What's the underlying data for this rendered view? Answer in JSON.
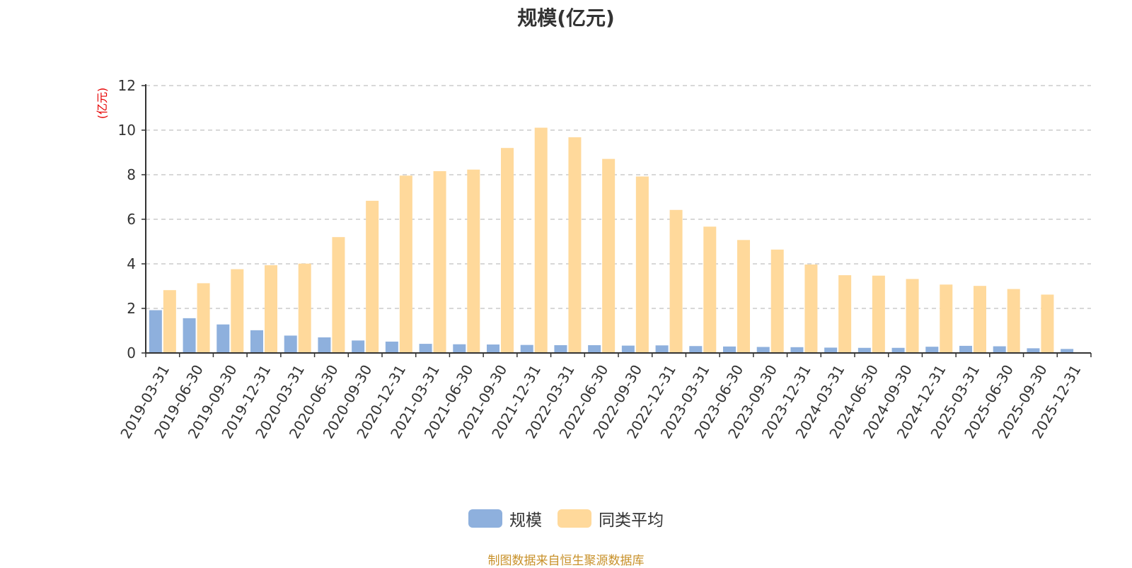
{
  "chart_data": {
    "type": "bar",
    "title": "规模(亿元)",
    "ylabel": "(亿元)",
    "xlabel": "",
    "ylim": [
      0,
      12
    ],
    "yticks": [
      0,
      2,
      4,
      6,
      8,
      10,
      12
    ],
    "grid": true,
    "legend_position": "bottom-center",
    "categories": [
      "2019-03-31",
      "2019-06-30",
      "2019-09-30",
      "2019-12-31",
      "2020-03-31",
      "2020-06-30",
      "2020-09-30",
      "2020-12-31",
      "2021-03-31",
      "2021-06-30",
      "2021-09-30",
      "2021-12-31",
      "2022-03-31",
      "2022-06-30",
      "2022-09-30",
      "2022-12-31",
      "2023-03-31",
      "2023-06-30",
      "2023-09-30",
      "2023-12-31",
      "2024-03-31",
      "2024-06-30",
      "2024-09-30",
      "2024-12-31",
      "2025-03-31",
      "2025-06-30",
      "2025-09-30",
      "2025-12-31"
    ],
    "series": [
      {
        "name": "规模",
        "color": "#8eb0dd",
        "values": [
          1.92,
          1.56,
          1.28,
          1.02,
          0.78,
          0.7,
          0.56,
          0.51,
          0.41,
          0.39,
          0.38,
          0.36,
          0.35,
          0.35,
          0.33,
          0.34,
          0.31,
          0.29,
          0.27,
          0.26,
          0.24,
          0.23,
          0.23,
          0.28,
          0.32,
          0.3,
          0.21,
          0.18
        ]
      },
      {
        "name": "同类平均",
        "color": "#ffd99b",
        "values": [
          2.82,
          3.13,
          3.76,
          3.94,
          4.01,
          5.2,
          6.83,
          7.96,
          8.16,
          8.23,
          9.2,
          10.11,
          9.68,
          8.71,
          7.92,
          6.42,
          5.67,
          5.07,
          4.64,
          3.97,
          3.49,
          3.47,
          3.32,
          3.07,
          3.01,
          2.87,
          2.62,
          null
        ]
      }
    ]
  },
  "source_note": "制图数据来自恒生聚源数据库"
}
